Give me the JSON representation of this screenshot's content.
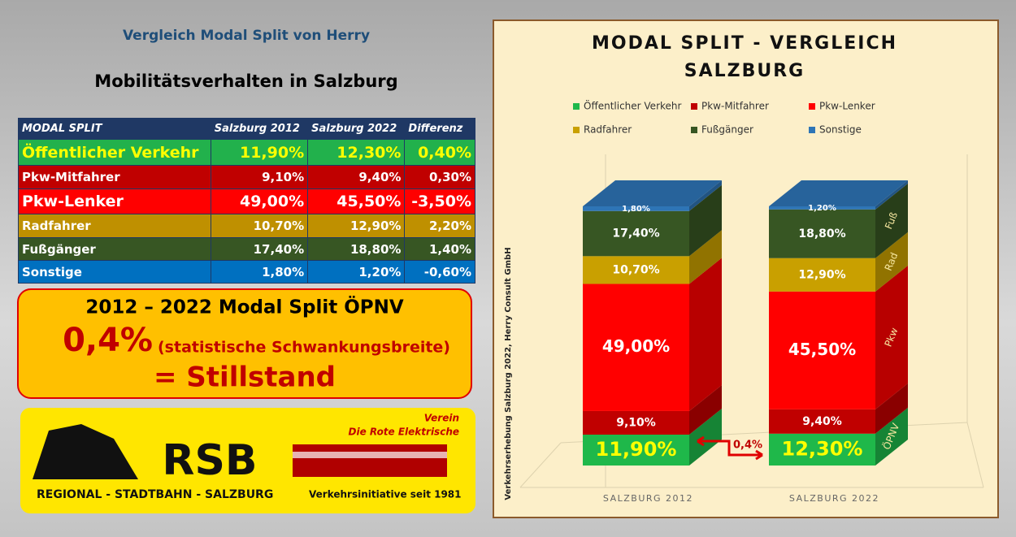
{
  "heading": "Vergleich Modal Split von Herry",
  "subheading": "Mobilitätsverhalten in Salzburg",
  "table": {
    "header": [
      "MODAL SPLIT",
      "Salzburg 2012",
      "Salzburg 2022",
      "Differenz"
    ],
    "rows": [
      {
        "cells": [
          "Öffentlicher Verkehr",
          "11,90%",
          "12,30%",
          "0,40%"
        ],
        "bg": "#22b14c",
        "fg": "#ffff00"
      },
      {
        "cells": [
          "Pkw-Mitfahrer",
          "9,10%",
          "9,40%",
          "0,30%"
        ],
        "bg": "#c00000",
        "fg": "#ffffff"
      },
      {
        "cells": [
          "Pkw-Lenker",
          "49,00%",
          "45,50%",
          "-3,50%"
        ],
        "bg": "#ff0000",
        "fg": "#ffffff"
      },
      {
        "cells": [
          "Radfahrer",
          "10,70%",
          "12,90%",
          "2,20%"
        ],
        "bg": "#bf9000",
        "fg": "#ffffff"
      },
      {
        "cells": [
          "Fußgänger",
          "17,40%",
          "18,80%",
          "1,40%"
        ],
        "bg": "#375623",
        "fg": "#ffffff"
      },
      {
        "cells": [
          "Sonstige",
          "1,80%",
          "1,20%",
          "-0,60%"
        ],
        "bg": "#0070c0",
        "fg": "#ffffff"
      }
    ]
  },
  "callout": {
    "line1": "2012 – 2022 Modal Split ÖPNV",
    "value": "0,4%",
    "note": "(statistische Schwankungsbreite)",
    "line3": "= Stillstand"
  },
  "logo": {
    "club": "Verein",
    "subtitle": "Die Rote Elektrische",
    "mark": "RSB",
    "name": "REGIONAL - STADTBAHN - SALZBURG",
    "since": "Verkehrsinitiative seit 1981"
  },
  "chart_data": {
    "type": "bar",
    "stacked": true,
    "title": [
      "MODAL SPLIT - VERGLEICH",
      "SALZBURG"
    ],
    "source": "Verkehrserhebung Salzburg 2022, Herry Consult GmbH",
    "categories": [
      "SALZBURG 2012",
      "SALZBURG 2022"
    ],
    "series": [
      {
        "name": "Öffentlicher Verkehr",
        "color": "#1fb84a",
        "values": [
          11.9,
          12.3
        ],
        "value_labels": [
          "11,90%",
          "12,30%"
        ],
        "side_label": "ÖPNV"
      },
      {
        "name": "Pkw-Mitfahrer",
        "color": "#c00000",
        "values": [
          9.1,
          9.4
        ],
        "value_labels": [
          "9,10%",
          "9,40%"
        ]
      },
      {
        "name": "Pkw-Lenker",
        "color": "#ff0000",
        "values": [
          49.0,
          45.5
        ],
        "value_labels": [
          "49,00%",
          "45,50%"
        ],
        "side_label": "Pkw"
      },
      {
        "name": "Radfahrer",
        "color": "#c9a000",
        "values": [
          10.7,
          12.9
        ],
        "value_labels": [
          "10,70%",
          "12,90%"
        ],
        "side_label": "Rad"
      },
      {
        "name": "Fußgänger",
        "color": "#375623",
        "values": [
          17.4,
          18.8
        ],
        "value_labels": [
          "17,40%",
          "18,80%"
        ],
        "side_label": "Fuß"
      },
      {
        "name": "Sonstige",
        "color": "#2e75b6",
        "values": [
          1.8,
          1.2
        ],
        "value_labels": [
          "1,80%",
          "1,20%"
        ]
      }
    ],
    "annotation": "0,4%"
  }
}
